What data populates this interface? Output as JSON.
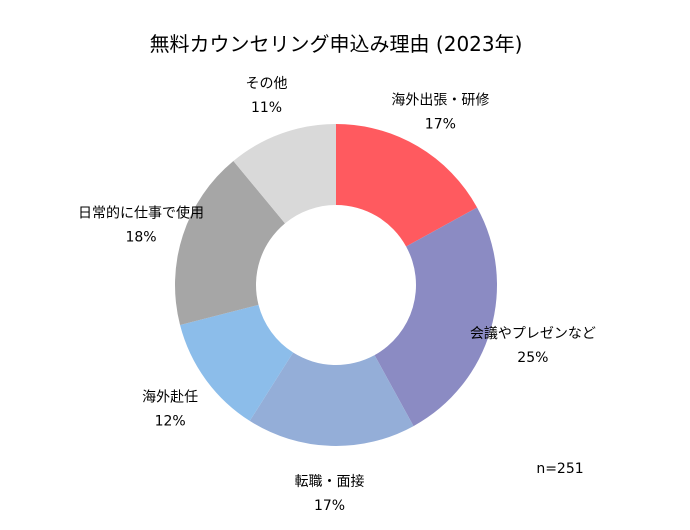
{
  "chart_data": {
    "type": "pie",
    "donut": true,
    "title": "無料カウンセリング申込み理由 (2023年)",
    "slices": [
      {
        "label": "海外出張・研修",
        "percent_label": "17%",
        "value": 17,
        "color": "#ff5a5f"
      },
      {
        "label": "会議やプレゼンなど",
        "percent_label": "25%",
        "value": 25,
        "color": "#8b8bc3"
      },
      {
        "label": "転職・面接",
        "percent_label": "17%",
        "value": 17,
        "color": "#94aed8"
      },
      {
        "label": "海外赴任",
        "percent_label": "12%",
        "value": 12,
        "color": "#8cbdea"
      },
      {
        "label": "日常的に仕事で使用",
        "percent_label": "18%",
        "value": 18,
        "color": "#a6a6a6"
      },
      {
        "label": "その他",
        "percent_label": "11%",
        "value": 11,
        "color": "#d9d9d9"
      }
    ],
    "start": "12 o'clock",
    "direction": "clockwise",
    "legend": "none",
    "annotation": "n=251"
  }
}
